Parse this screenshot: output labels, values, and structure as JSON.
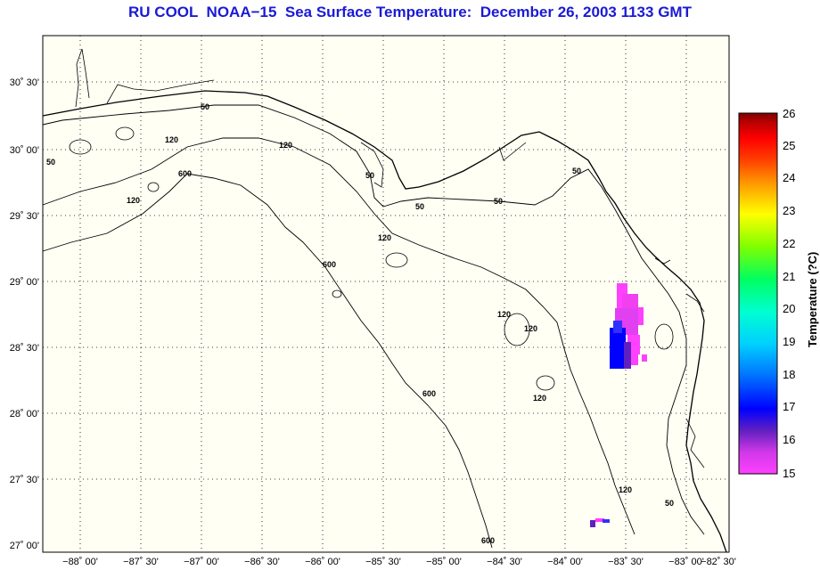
{
  "title": "RU COOL  NOAA−15  Sea Surface Temperature:  December 26, 2003 1133 GMT",
  "lat_labels": [
    "30˚ 30'",
    "30˚ 00'",
    "29˚ 30'",
    "29˚ 00'",
    "28˚ 30'",
    "28˚ 00'",
    "27˚ 30'",
    "27˚ 00'"
  ],
  "lat_values": [
    30.5,
    30.0,
    29.5,
    29.0,
    28.5,
    28.0,
    27.5,
    27.0
  ],
  "lon_labels": [
    "−88˚ 00'",
    "−87˚ 30'",
    "−87˚ 00'",
    "−86˚ 30'",
    "−86˚ 00'",
    "−85˚ 30'",
    "−85˚ 00'",
    "−84˚ 30'",
    "−84˚ 00'",
    "−83˚ 30'",
    "−83˚ 00'",
    "−82˚ 30'"
  ],
  "lon_values": [
    -88.0,
    -87.5,
    -87.0,
    -86.5,
    -86.0,
    -85.5,
    -85.0,
    -84.5,
    -84.0,
    -83.5,
    -83.0,
    -82.5
  ],
  "contour_labels": [
    "50",
    "50",
    "50",
    "50",
    "50",
    "50",
    "50",
    "120",
    "120",
    "120",
    "120",
    "120",
    "120",
    "120",
    "120",
    "600",
    "600",
    "600",
    "600"
  ],
  "colorbar": {
    "title": "Temperature (?C)",
    "min": 15,
    "max": 26,
    "ticks": [
      "26",
      "25",
      "24",
      "23",
      "22",
      "21",
      "20",
      "19",
      "18",
      "17",
      "16",
      "15"
    ],
    "colors": [
      "#ff40ff",
      "#c030e8",
      "#6020c0",
      "#0000ff",
      "#0070ff",
      "#00d0ff",
      "#00ffd0",
      "#00ff60",
      "#80ff00",
      "#ffff00",
      "#ffa000",
      "#ff4000",
      "#ff0000",
      "#c00000",
      "#800000"
    ]
  },
  "colors": {
    "title": "#1a1ad6",
    "frame": "#000000",
    "grid": "#000000"
  }
}
